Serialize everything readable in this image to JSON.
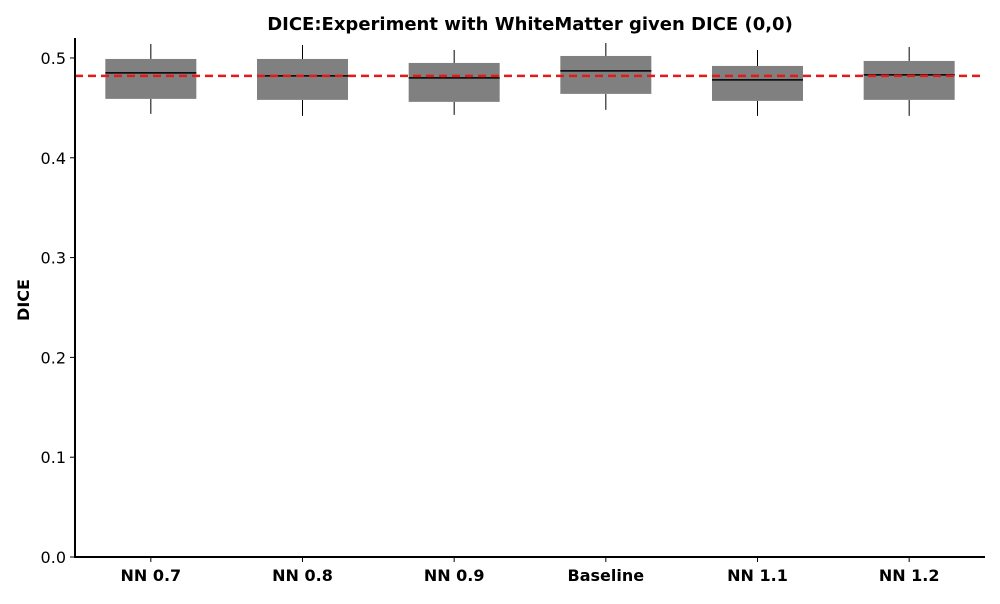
{
  "chart_data": {
    "type": "box",
    "title": "DICE:Experiment with WhiteMatter given DICE (0,0)",
    "xlabel": "",
    "ylabel": "DICE",
    "ylim": [
      0.0,
      0.52
    ],
    "yticks": [
      0.0,
      0.1,
      0.2,
      0.3,
      0.4,
      0.5
    ],
    "ytick_labels": [
      "0.0",
      "0.1",
      "0.2",
      "0.3",
      "0.4",
      "0.5"
    ],
    "categories": [
      "NN 0.7",
      "NN 0.8",
      "NN 0.9",
      "Baseline",
      "NN 1.1",
      "NN 1.2"
    ],
    "boxes": [
      {
        "whisker_low": 0.444,
        "q1": 0.459,
        "median": 0.485,
        "q3": 0.499,
        "whisker_high": 0.514
      },
      {
        "whisker_low": 0.442,
        "q1": 0.458,
        "median": 0.482,
        "q3": 0.499,
        "whisker_high": 0.513
      },
      {
        "whisker_low": 0.443,
        "q1": 0.456,
        "median": 0.48,
        "q3": 0.495,
        "whisker_high": 0.508
      },
      {
        "whisker_low": 0.448,
        "q1": 0.464,
        "median": 0.487,
        "q3": 0.502,
        "whisker_high": 0.515
      },
      {
        "whisker_low": 0.442,
        "q1": 0.457,
        "median": 0.478,
        "q3": 0.492,
        "whisker_high": 0.508
      },
      {
        "whisker_low": 0.442,
        "q1": 0.458,
        "median": 0.483,
        "q3": 0.497,
        "whisker_high": 0.511
      }
    ],
    "reference_line": {
      "value": 0.482,
      "style": "dashed",
      "color": "#e31a1c"
    },
    "box_color": "#808080",
    "median_color": "#000000",
    "whisker_color": "#000000",
    "grid": false
  }
}
